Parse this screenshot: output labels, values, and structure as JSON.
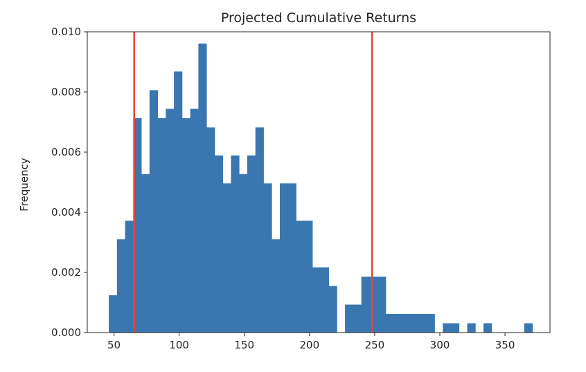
{
  "chart_data": {
    "type": "bar",
    "title": "Projected Cumulative Returns",
    "xlabel": "",
    "ylabel": "Frequency",
    "xlim": [
      29.5,
      384.5
    ],
    "ylim": [
      0,
      0.01
    ],
    "xticks": [
      50,
      100,
      150,
      200,
      250,
      300,
      350
    ],
    "yticks": [
      0.0,
      0.002,
      0.004,
      0.006,
      0.008,
      0.01
    ],
    "bin_start": 46,
    "bin_width": 6.25,
    "values": [
      0.00124,
      0.0031,
      0.00372,
      0.00713,
      0.00527,
      0.00806,
      0.00713,
      0.00744,
      0.00868,
      0.00713,
      0.00744,
      0.00961,
      0.00682,
      0.00589,
      0.00496,
      0.00589,
      0.00527,
      0.00589,
      0.00682,
      0.00496,
      0.0031,
      0.00496,
      0.00496,
      0.00372,
      0.00372,
      0.00217,
      0.00217,
      0.00155,
      0,
      0.00093,
      0.00093,
      0.00186,
      0.00186,
      0.00186,
      0.00062,
      0.00062,
      0.00062,
      0.00062,
      0.00062,
      0.00062,
      0,
      0.00031,
      0.00031,
      0,
      0.00031,
      0,
      0.00031,
      0,
      0,
      0,
      0,
      0.00031
    ],
    "vertical_lines": [
      65.5,
      248
    ],
    "bar_color": "#3a76af",
    "line_color": "#e5453d",
    "grid": false,
    "legend": "none"
  }
}
